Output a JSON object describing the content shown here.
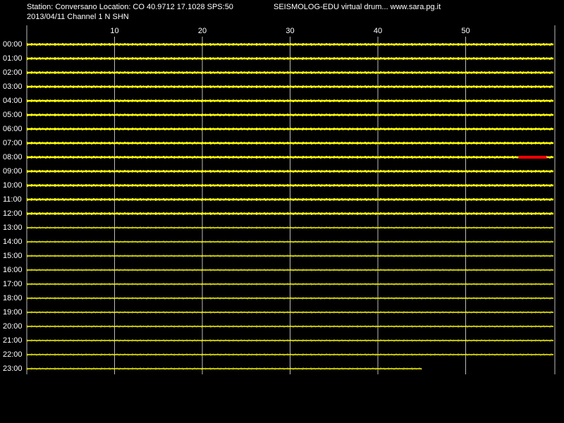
{
  "chart_data": {
    "type": "drum",
    "header_left": [
      "Station: Conversano Location: CO 40.9712 17.1028 SPS:50",
      "2013/04/11  Channel 1 N SHN"
    ],
    "header_right": "SEISMOLOG-EDU virtual drum... www.sara.pg.it",
    "xlim": [
      0,
      60
    ],
    "xticks": [
      10,
      20,
      30,
      40,
      50
    ],
    "rows": [
      "00:00",
      "01:00",
      "02:00",
      "03:00",
      "04:00",
      "05:00",
      "06:00",
      "07:00",
      "08:00",
      "09:00",
      "10:00",
      "11:00",
      "12:00",
      "13:00",
      "14:00",
      "15:00",
      "16:00",
      "17:00",
      "18:00",
      "19:00",
      "20:00",
      "21:00",
      "22:00",
      "23:00"
    ],
    "trace_color": "#ffff00",
    "last_row_end": 45,
    "event": {
      "row": 8,
      "start": 56,
      "end": 59.2,
      "color": "#ff0000"
    }
  }
}
